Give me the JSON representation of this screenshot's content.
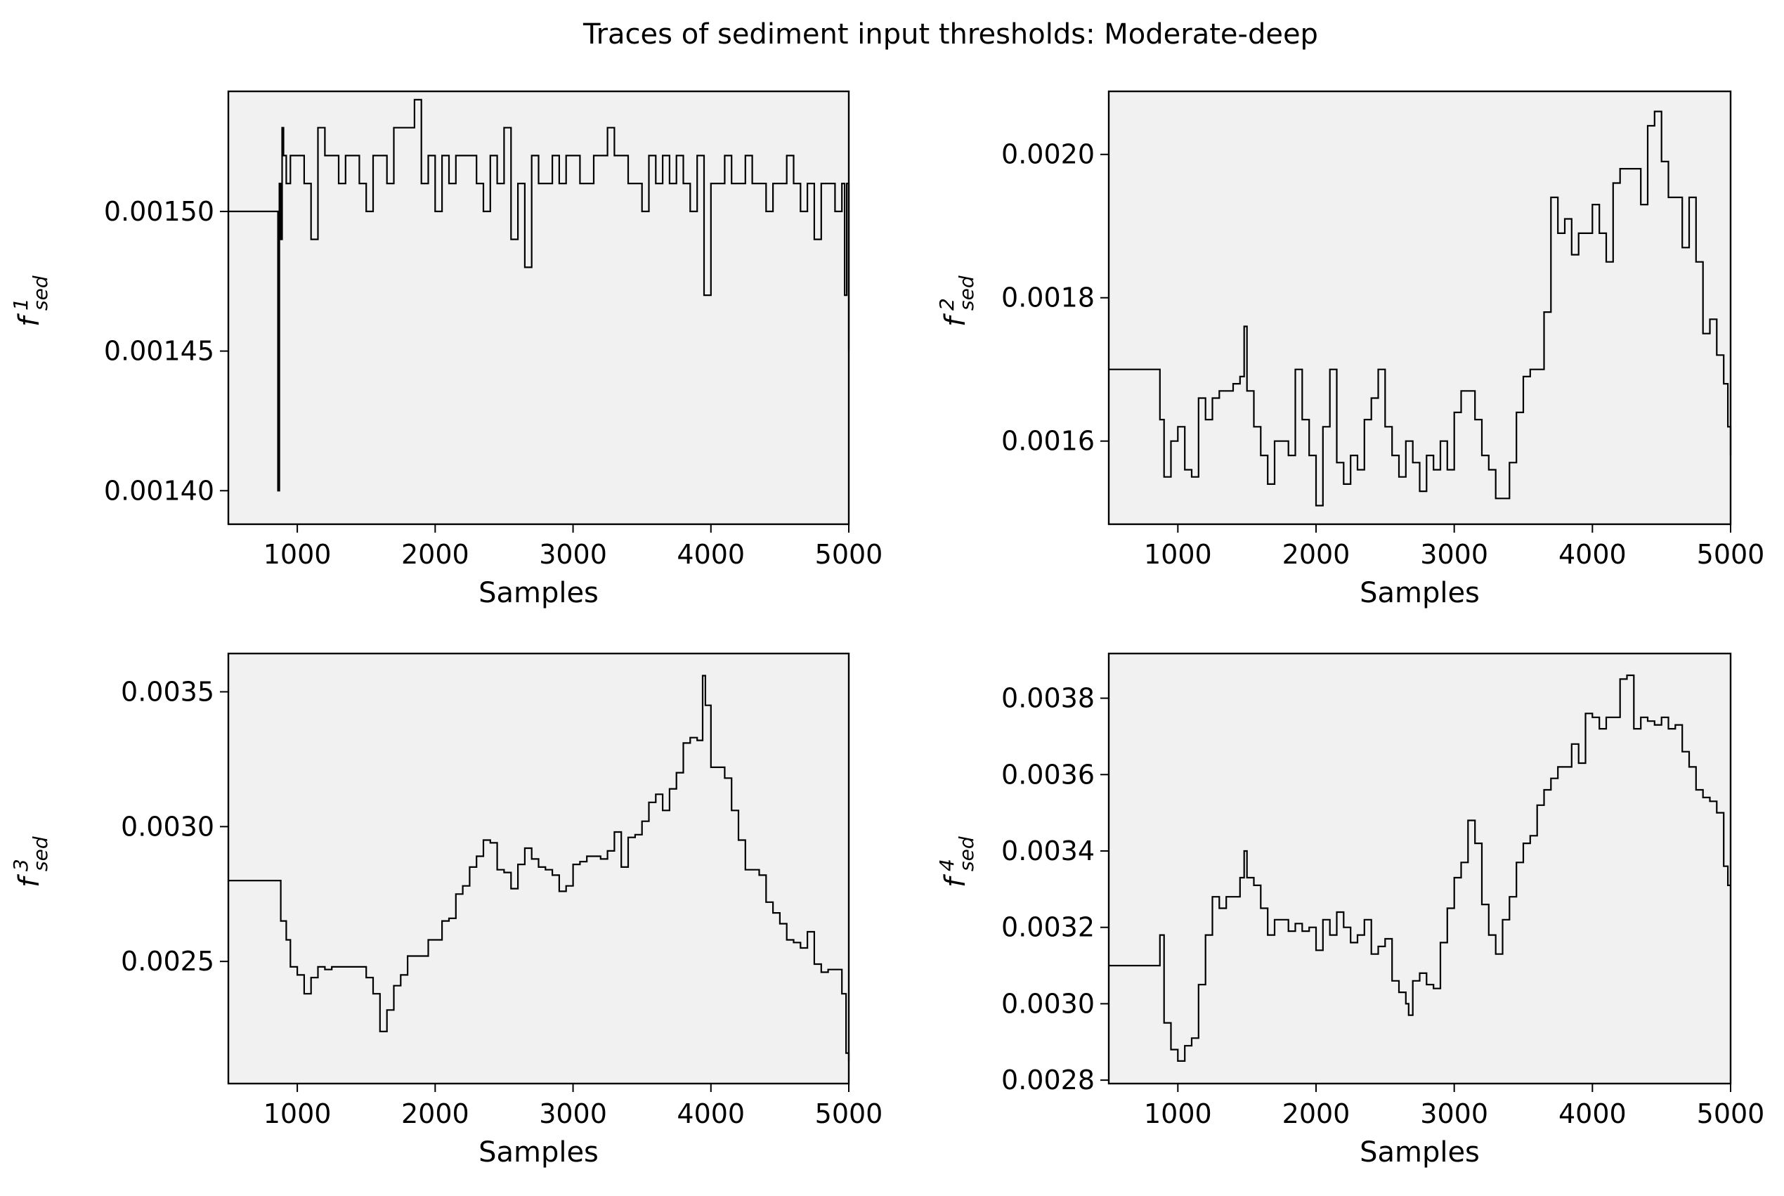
{
  "figure": {
    "title": "Traces of sediment input thresholds: Moderate-deep"
  },
  "chart_data": [
    {
      "type": "line",
      "title": "",
      "xlabel": "Samples",
      "ylabel": {
        "base": "f",
        "superscript": "1",
        "subscript": "sed"
      },
      "xlim": [
        500,
        5000
      ],
      "ylim": [
        0.001388,
        0.001543
      ],
      "xticks": [
        1000,
        2000,
        3000,
        4000,
        5000
      ],
      "xtick_labels": [
        "1000",
        "2000",
        "3000",
        "4000",
        "5000"
      ],
      "yticks": [
        0.0014,
        0.00145,
        0.0015
      ],
      "ytick_labels": [
        "0.00140",
        "0.00145",
        "0.00150"
      ],
      "grid": false,
      "step": true,
      "series": [
        {
          "x": [
            500,
            850,
            860,
            870,
            880,
            890,
            900,
            920,
            950,
            1000,
            1050,
            1100,
            1150,
            1200,
            1250,
            1300,
            1350,
            1400,
            1450,
            1500,
            1550,
            1600,
            1650,
            1700,
            1750,
            1800,
            1850,
            1900,
            1950,
            2000,
            2050,
            2100,
            2150,
            2200,
            2250,
            2300,
            2350,
            2400,
            2450,
            2500,
            2550,
            2600,
            2650,
            2700,
            2750,
            2800,
            2850,
            2900,
            2950,
            3000,
            3050,
            3100,
            3150,
            3200,
            3250,
            3300,
            3350,
            3400,
            3450,
            3500,
            3550,
            3600,
            3650,
            3700,
            3750,
            3800,
            3850,
            3900,
            3950,
            4000,
            4050,
            4100,
            4150,
            4200,
            4250,
            4300,
            4350,
            4400,
            4450,
            4500,
            4550,
            4600,
            4650,
            4700,
            4750,
            4800,
            4850,
            4900,
            4950,
            4970,
            4985,
            5000
          ],
          "y": [
            0.0015,
            0.0015,
            0.0014,
            0.00151,
            0.00149,
            0.00153,
            0.00152,
            0.00151,
            0.00152,
            0.00152,
            0.00151,
            0.00149,
            0.00153,
            0.00152,
            0.00152,
            0.00151,
            0.00152,
            0.00152,
            0.00151,
            0.0015,
            0.00152,
            0.00152,
            0.00151,
            0.00153,
            0.00153,
            0.00153,
            0.00154,
            0.00151,
            0.00152,
            0.0015,
            0.00152,
            0.00151,
            0.00152,
            0.00152,
            0.00152,
            0.00151,
            0.0015,
            0.00152,
            0.00151,
            0.00153,
            0.00149,
            0.00151,
            0.00148,
            0.00152,
            0.00151,
            0.00151,
            0.00152,
            0.00151,
            0.00152,
            0.00152,
            0.00151,
            0.00151,
            0.00152,
            0.00152,
            0.00153,
            0.00152,
            0.00152,
            0.00151,
            0.00151,
            0.0015,
            0.00152,
            0.00151,
            0.00152,
            0.00151,
            0.00152,
            0.00151,
            0.0015,
            0.00152,
            0.00147,
            0.00151,
            0.00151,
            0.00152,
            0.00151,
            0.00151,
            0.00152,
            0.00151,
            0.00151,
            0.0015,
            0.00151,
            0.00151,
            0.00152,
            0.00151,
            0.0015,
            0.00151,
            0.00149,
            0.00151,
            0.00151,
            0.0015,
            0.00151,
            0.00147,
            0.00151,
            0.00145
          ]
        }
      ]
    },
    {
      "type": "line",
      "title": "",
      "xlabel": "Samples",
      "ylabel": {
        "base": "f",
        "superscript": "2",
        "subscript": "sed"
      },
      "xlim": [
        500,
        5000
      ],
      "ylim": [
        0.001484,
        0.002088
      ],
      "xticks": [
        1000,
        2000,
        3000,
        4000,
        5000
      ],
      "xtick_labels": [
        "1000",
        "2000",
        "3000",
        "4000",
        "5000"
      ],
      "yticks": [
        0.0016,
        0.0018,
        0.002
      ],
      "ytick_labels": [
        "0.0016",
        "0.0018",
        "0.0020"
      ],
      "grid": false,
      "step": true,
      "series": [
        {
          "x": [
            500,
            850,
            870,
            900,
            950,
            1000,
            1050,
            1100,
            1150,
            1200,
            1250,
            1300,
            1350,
            1400,
            1450,
            1480,
            1500,
            1550,
            1600,
            1650,
            1700,
            1750,
            1800,
            1850,
            1900,
            1950,
            2000,
            2050,
            2100,
            2150,
            2200,
            2250,
            2300,
            2350,
            2400,
            2450,
            2500,
            2550,
            2600,
            2650,
            2700,
            2750,
            2800,
            2850,
            2900,
            2950,
            3000,
            3050,
            3100,
            3150,
            3200,
            3250,
            3300,
            3350,
            3400,
            3450,
            3500,
            3550,
            3600,
            3650,
            3700,
            3750,
            3800,
            3850,
            3900,
            3950,
            4000,
            4050,
            4100,
            4150,
            4200,
            4250,
            4300,
            4350,
            4400,
            4450,
            4500,
            4550,
            4600,
            4650,
            4700,
            4750,
            4800,
            4850,
            4900,
            4950,
            4980,
            5000
          ],
          "y": [
            0.0017,
            0.0017,
            0.00163,
            0.00155,
            0.0016,
            0.00162,
            0.00156,
            0.00155,
            0.00166,
            0.00163,
            0.00166,
            0.00167,
            0.00167,
            0.00168,
            0.00169,
            0.00176,
            0.00167,
            0.00162,
            0.00158,
            0.00154,
            0.0016,
            0.0016,
            0.00158,
            0.0017,
            0.00163,
            0.00158,
            0.00151,
            0.00162,
            0.0017,
            0.00157,
            0.00154,
            0.00158,
            0.00156,
            0.00163,
            0.00166,
            0.0017,
            0.00162,
            0.00158,
            0.00155,
            0.0016,
            0.00157,
            0.00153,
            0.00158,
            0.00156,
            0.0016,
            0.00156,
            0.00164,
            0.00167,
            0.00167,
            0.00163,
            0.00158,
            0.00156,
            0.00152,
            0.00152,
            0.00157,
            0.00164,
            0.00169,
            0.0017,
            0.0017,
            0.00178,
            0.00194,
            0.00189,
            0.00191,
            0.00186,
            0.00189,
            0.00189,
            0.00193,
            0.00189,
            0.00185,
            0.00196,
            0.00198,
            0.00198,
            0.00198,
            0.00193,
            0.00204,
            0.00206,
            0.00199,
            0.00194,
            0.00194,
            0.00187,
            0.00194,
            0.00185,
            0.00175,
            0.00177,
            0.00172,
            0.00168,
            0.00162,
            0.00158
          ]
        }
      ]
    },
    {
      "type": "line",
      "title": "",
      "xlabel": "Samples",
      "ylabel": {
        "base": "f",
        "superscript": "3",
        "subscript": "sed"
      },
      "xlim": [
        500,
        5000
      ],
      "ylim": [
        0.002047,
        0.003642
      ],
      "xticks": [
        1000,
        2000,
        3000,
        4000,
        5000
      ],
      "xtick_labels": [
        "1000",
        "2000",
        "3000",
        "4000",
        "5000"
      ],
      "yticks": [
        0.0025,
        0.003,
        0.0035
      ],
      "ytick_labels": [
        "0.0025",
        "0.0030",
        "0.0035"
      ],
      "grid": false,
      "step": true,
      "series": [
        {
          "x": [
            500,
            850,
            880,
            920,
            950,
            1000,
            1050,
            1100,
            1150,
            1200,
            1250,
            1300,
            1350,
            1400,
            1450,
            1500,
            1550,
            1600,
            1650,
            1700,
            1750,
            1800,
            1850,
            1900,
            1950,
            2000,
            2050,
            2100,
            2150,
            2200,
            2250,
            2300,
            2350,
            2400,
            2450,
            2500,
            2550,
            2600,
            2650,
            2700,
            2750,
            2800,
            2850,
            2900,
            2950,
            3000,
            3050,
            3100,
            3150,
            3200,
            3250,
            3300,
            3350,
            3400,
            3450,
            3500,
            3550,
            3600,
            3650,
            3700,
            3750,
            3800,
            3850,
            3900,
            3940,
            3960,
            4000,
            4050,
            4100,
            4150,
            4200,
            4250,
            4300,
            4350,
            4400,
            4450,
            4500,
            4550,
            4600,
            4650,
            4700,
            4750,
            4800,
            4850,
            4900,
            4950,
            4980,
            5000
          ],
          "y": [
            0.0028,
            0.0028,
            0.00265,
            0.00258,
            0.00248,
            0.00245,
            0.00238,
            0.00244,
            0.00248,
            0.00247,
            0.00248,
            0.00248,
            0.00248,
            0.00248,
            0.00248,
            0.00244,
            0.00238,
            0.00224,
            0.00232,
            0.00241,
            0.00245,
            0.00252,
            0.00252,
            0.00252,
            0.00258,
            0.00258,
            0.00265,
            0.00266,
            0.00275,
            0.00278,
            0.00285,
            0.00289,
            0.00295,
            0.00294,
            0.00284,
            0.00283,
            0.00277,
            0.00286,
            0.00292,
            0.00288,
            0.00285,
            0.00284,
            0.00282,
            0.00276,
            0.00278,
            0.00286,
            0.00287,
            0.00289,
            0.00289,
            0.00288,
            0.00291,
            0.00298,
            0.00285,
            0.00296,
            0.00297,
            0.00302,
            0.00309,
            0.00312,
            0.00306,
            0.00314,
            0.0032,
            0.00331,
            0.00333,
            0.00332,
            0.00356,
            0.00345,
            0.00322,
            0.00322,
            0.00318,
            0.00306,
            0.00295,
            0.00284,
            0.00284,
            0.00282,
            0.00272,
            0.00268,
            0.00264,
            0.00258,
            0.00257,
            0.00255,
            0.00261,
            0.00249,
            0.00246,
            0.00247,
            0.00247,
            0.00238,
            0.00216,
            0.00213
          ]
        }
      ]
    },
    {
      "type": "line",
      "title": "",
      "xlabel": "Samples",
      "ylabel": {
        "base": "f",
        "superscript": "4",
        "subscript": "sed"
      },
      "xlim": [
        500,
        5000
      ],
      "ylim": [
        0.002791,
        0.003917
      ],
      "xticks": [
        1000,
        2000,
        3000,
        4000,
        5000
      ],
      "xtick_labels": [
        "1000",
        "2000",
        "3000",
        "4000",
        "5000"
      ],
      "yticks": [
        0.0028,
        0.003,
        0.0032,
        0.0034,
        0.0036,
        0.0038
      ],
      "ytick_labels": [
        "0.0028",
        "0.0030",
        "0.0032",
        "0.0034",
        "0.0036",
        "0.0038"
      ],
      "grid": false,
      "step": true,
      "series": [
        {
          "x": [
            500,
            850,
            870,
            900,
            950,
            1000,
            1050,
            1100,
            1150,
            1200,
            1250,
            1300,
            1350,
            1400,
            1450,
            1480,
            1500,
            1550,
            1600,
            1650,
            1700,
            1750,
            1800,
            1850,
            1900,
            1950,
            2000,
            2050,
            2100,
            2150,
            2200,
            2250,
            2300,
            2350,
            2400,
            2450,
            2500,
            2550,
            2600,
            2650,
            2670,
            2700,
            2750,
            2800,
            2850,
            2900,
            2950,
            3000,
            3050,
            3100,
            3150,
            3200,
            3250,
            3300,
            3350,
            3400,
            3450,
            3500,
            3550,
            3600,
            3650,
            3700,
            3750,
            3800,
            3850,
            3900,
            3950,
            4000,
            4050,
            4100,
            4150,
            4200,
            4250,
            4300,
            4350,
            4400,
            4450,
            4500,
            4550,
            4600,
            4650,
            4700,
            4750,
            4800,
            4850,
            4900,
            4950,
            4980,
            5000
          ],
          "y": [
            0.0031,
            0.0031,
            0.00318,
            0.00295,
            0.00288,
            0.00285,
            0.00289,
            0.00291,
            0.00305,
            0.00318,
            0.00328,
            0.00325,
            0.00328,
            0.00328,
            0.00333,
            0.0034,
            0.00333,
            0.00331,
            0.00325,
            0.00318,
            0.00322,
            0.00322,
            0.00319,
            0.00321,
            0.00319,
            0.0032,
            0.00314,
            0.00322,
            0.00318,
            0.00324,
            0.0032,
            0.00316,
            0.00318,
            0.00322,
            0.00313,
            0.00315,
            0.00317,
            0.00306,
            0.00303,
            0.003,
            0.00297,
            0.00306,
            0.00308,
            0.00305,
            0.00304,
            0.00316,
            0.00325,
            0.00333,
            0.00337,
            0.00348,
            0.00342,
            0.00326,
            0.00318,
            0.00313,
            0.00322,
            0.00328,
            0.00337,
            0.00342,
            0.00344,
            0.00352,
            0.00356,
            0.00359,
            0.00362,
            0.00362,
            0.00368,
            0.00363,
            0.00376,
            0.00375,
            0.00372,
            0.00375,
            0.00375,
            0.00385,
            0.00386,
            0.00372,
            0.00375,
            0.00374,
            0.00373,
            0.00375,
            0.00372,
            0.00373,
            0.00366,
            0.00362,
            0.00356,
            0.00354,
            0.00353,
            0.0035,
            0.00336,
            0.00331,
            0.00331
          ]
        }
      ]
    }
  ]
}
